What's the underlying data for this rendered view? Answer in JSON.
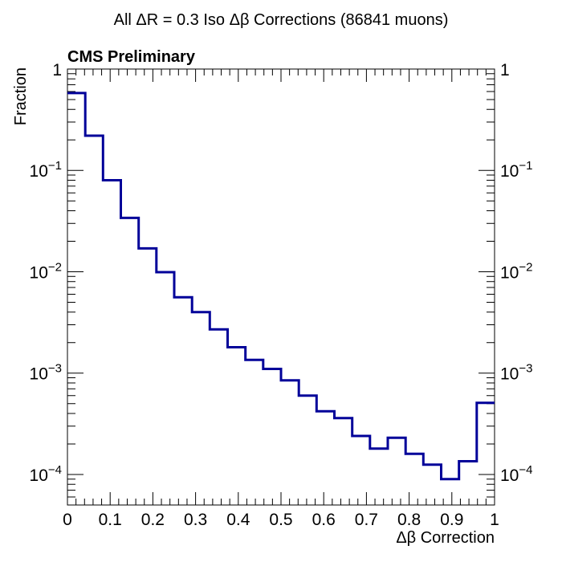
{
  "figure": {
    "title": "All ΔR = 0.3 Iso Δβ Corrections (86841 muons)",
    "label": "CMS Preliminary"
  },
  "chart_data": {
    "type": "line",
    "style": "step-histogram",
    "title": "All ΔR = 0.3 Iso Δβ Corrections (86841 muons)",
    "xlabel": "Δβ Correction",
    "ylabel": "Fraction",
    "xlim": [
      0,
      1
    ],
    "ylim": [
      5e-05,
      1
    ],
    "log_y": true,
    "bin_edges": [
      0,
      0.0417,
      0.0833,
      0.125,
      0.1667,
      0.2083,
      0.25,
      0.2917,
      0.3333,
      0.375,
      0.4167,
      0.4583,
      0.5,
      0.5417,
      0.5833,
      0.625,
      0.6667,
      0.7083,
      0.75,
      0.7917,
      0.8333,
      0.875,
      0.9167,
      0.9583,
      1.0
    ],
    "values": [
      0.58,
      0.22,
      0.08,
      0.034,
      0.017,
      0.0099,
      0.0056,
      0.004,
      0.0027,
      0.0018,
      0.00135,
      0.0011,
      0.00085,
      0.0006,
      0.00042,
      0.00036,
      0.00024,
      0.00018,
      0.00023,
      0.00016,
      0.000125,
      9e-05,
      0.000135,
      0.00051
    ],
    "x_ticks": [
      {
        "value": 0,
        "label": "0"
      },
      {
        "value": 0.1,
        "label": "0.1"
      },
      {
        "value": 0.2,
        "label": "0.2"
      },
      {
        "value": 0.3,
        "label": "0.3"
      },
      {
        "value": 0.4,
        "label": "0.4"
      },
      {
        "value": 0.5,
        "label": "0.5"
      },
      {
        "value": 0.6,
        "label": "0.6"
      },
      {
        "value": 0.7,
        "label": "0.7"
      },
      {
        "value": 0.8,
        "label": "0.8"
      },
      {
        "value": 0.9,
        "label": "0.9"
      },
      {
        "value": 1,
        "label": "1"
      }
    ],
    "y_ticks": [
      {
        "exp": 0,
        "base": "1",
        "sup": ""
      },
      {
        "exp": -1,
        "base": "10",
        "sup": "−1"
      },
      {
        "exp": -2,
        "base": "10",
        "sup": "−2"
      },
      {
        "exp": -3,
        "base": "10",
        "sup": "−3"
      },
      {
        "exp": -4,
        "base": "10",
        "sup": "−4"
      }
    ],
    "series": [
      {
        "values": [
          0.58,
          0.22,
          0.08,
          0.034,
          0.017,
          0.0099,
          0.0056,
          0.004,
          0.0027,
          0.0018,
          0.00135,
          0.0011,
          0.00085,
          0.0006,
          0.00042,
          0.00036,
          0.00024,
          0.00018,
          0.00023,
          0.00016,
          0.000125,
          9e-05,
          0.000135,
          0.00051
        ],
        "color": "#000099"
      }
    ],
    "grid": false,
    "mirror_axes": true
  }
}
